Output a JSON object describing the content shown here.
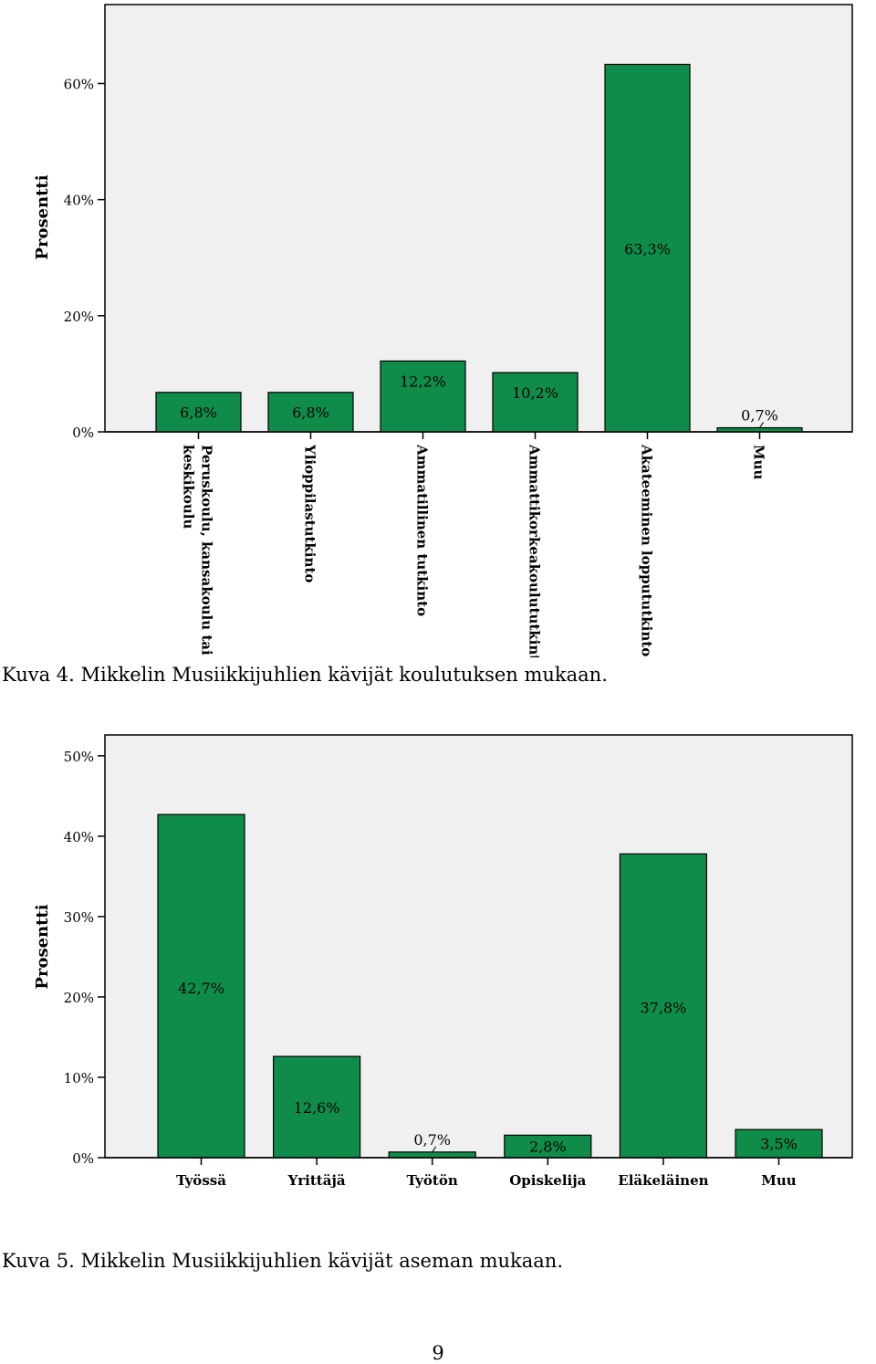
{
  "chart_data": [
    {
      "type": "bar",
      "ylabel": "Prosentti",
      "categories": [
        "Peruskoulu, kansakoulu tai keskikoulu",
        "Ylioppilastutkinto",
        "Ammatillinen tutkinto",
        "Ammattikorkeakoulututkinto",
        "Akateeminen loppututkinto",
        "Muu"
      ],
      "values": [
        6.8,
        6.8,
        12.2,
        10.2,
        63.3,
        0.7
      ],
      "data_labels": [
        "6,8%",
        "6,8%",
        "12,2%",
        "10,2%",
        "63,3%",
        "0,7%"
      ],
      "yticks": [
        0,
        20,
        40,
        60
      ],
      "ytick_labels": [
        "0%",
        "20%",
        "40%",
        "60%"
      ],
      "ylim": [
        0,
        73.6
      ],
      "xtick_rotation": "vertical",
      "bar_color": "#108c4a",
      "plot_background": "#f0f0f0",
      "grid": false
    },
    {
      "type": "bar",
      "ylabel": "Prosentti",
      "categories": [
        "Työssä",
        "Yrittäjä",
        "Työtön",
        "Opiskelija",
        "Eläkeläinen",
        "Muu"
      ],
      "values": [
        42.7,
        12.6,
        0.7,
        2.8,
        37.8,
        3.5
      ],
      "data_labels": [
        "42,7%",
        "12,6%",
        "0,7%",
        "2,8%",
        "37,8%",
        "3,5%"
      ],
      "yticks": [
        0,
        10,
        20,
        30,
        40,
        50
      ],
      "ytick_labels": [
        "0%",
        "10%",
        "20%",
        "30%",
        "40%",
        "50%"
      ],
      "ylim": [
        0,
        52.6
      ],
      "xtick_rotation": "horizontal",
      "bar_color": "#108c4a",
      "plot_background": "#f0f0f0",
      "grid": false
    }
  ],
  "captions": {
    "figure4": "Kuva 4. Mikkelin Musiikkijuhlien kävijät koulutuksen mukaan.",
    "figure5": "Kuva 5. Mikkelin Musiikkijuhlien kävijät aseman mukaan."
  },
  "page_number": "9"
}
